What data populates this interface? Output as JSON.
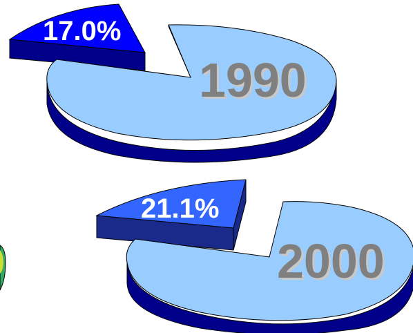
{
  "chart_data": [
    {
      "type": "pie",
      "title": "1990",
      "slices": [
        {
          "label": "17.0%",
          "value": 17.0,
          "exploded": true,
          "color": "#0000ff"
        },
        {
          "label": "",
          "value": 83.0,
          "exploded": false,
          "color": "#99ccff"
        }
      ]
    },
    {
      "type": "pie",
      "title": "2000",
      "slices": [
        {
          "label": "21.1%",
          "value": 21.1,
          "exploded": true,
          "color": "#3366ff"
        },
        {
          "label": "",
          "value": 78.9,
          "exploded": false,
          "color": "#99ccff"
        }
      ]
    }
  ],
  "colors": {
    "side_dark": "#00008b",
    "cut_face": "#8b6a4a",
    "year_text": "#808080"
  }
}
